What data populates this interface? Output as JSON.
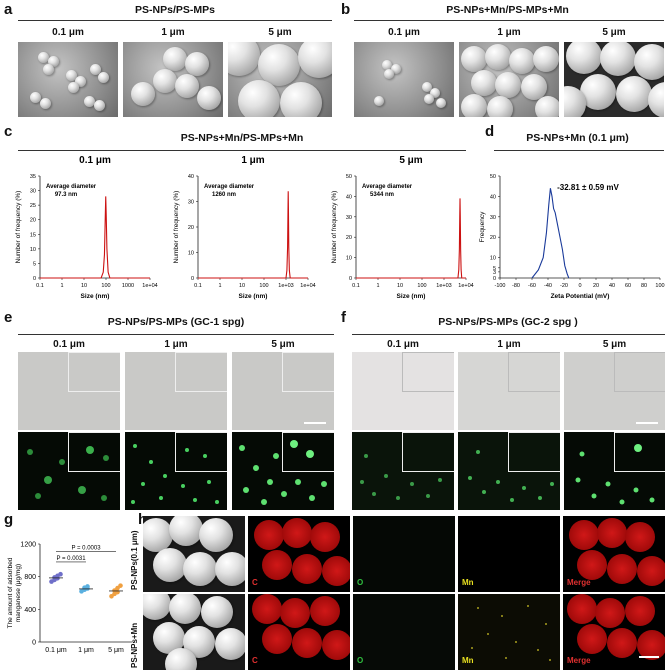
{
  "panels": {
    "a": {
      "label": "a",
      "title": "PS-NPs/PS-MPs",
      "cols": [
        "0.1 μm",
        "1 μm",
        "5 μm"
      ]
    },
    "b": {
      "label": "b",
      "title": "PS-NPs+Mn/PS-MPs+Mn",
      "cols": [
        "0.1 μm",
        "1 μm",
        "5 μm"
      ]
    },
    "c": {
      "label": "c",
      "title": "PS-NPs+Mn/PS-MPs+Mn",
      "cols": [
        "0.1 μm",
        "1 μm",
        "5 μm"
      ]
    },
    "d": {
      "label": "d",
      "title": "PS-NPs+Mn (0.1 μm)"
    },
    "e": {
      "label": "e",
      "title": "PS-NPs/PS-MPs (GC-1 spg)",
      "cols": [
        "0.1 μm",
        "1 μm",
        "5 μm"
      ]
    },
    "f": {
      "label": "f",
      "title": "PS-NPs/PS-MPs (GC-2 spg )",
      "cols": [
        "0.1 μm",
        "1 μm",
        "5 μm"
      ]
    },
    "g": {
      "label": "g"
    },
    "h": {
      "label": "h",
      "rows": [
        "PS-NPs(0.1 μm)",
        "PS-NPs+Mn"
      ],
      "elements": [
        "C",
        "O",
        "Mn",
        "Merge"
      ]
    }
  },
  "chart_data": [
    {
      "id": "c1",
      "type": "line",
      "title": "0.1 μm",
      "annotation": "Average diameter",
      "annotation_value": "97.3 nm",
      "xlabel": "Size (nm)",
      "ylabel": "Number of frequency (%)",
      "xscale": "log",
      "xticks": [
        "0.1",
        "1",
        "10",
        "100",
        "1000",
        "1e+04"
      ],
      "ylim": [
        0,
        35
      ],
      "yticks": [
        0,
        5,
        10,
        15,
        20,
        25,
        30,
        35
      ],
      "series": [
        {
          "x": [
            60,
            75,
            85,
            92,
            97.3,
            102,
            110,
            125,
            150
          ],
          "y": [
            0,
            2,
            8,
            20,
            28,
            22,
            10,
            2,
            0
          ]
        }
      ],
      "color": "#cc1111"
    },
    {
      "id": "c2",
      "type": "line",
      "title": "1 μm",
      "annotation": "Average diameter",
      "annotation_value": "1260 nm",
      "xlabel": "Size (nm)",
      "ylabel": "Number of frequency (%)",
      "xscale": "log",
      "xticks": [
        "0.1",
        "1",
        "10",
        "100",
        "1e+03",
        "1e+04"
      ],
      "ylim": [
        0,
        40
      ],
      "yticks": [
        0,
        10,
        20,
        30,
        40
      ],
      "series": [
        {
          "x": [
            1000,
            1100,
            1180,
            1230,
            1260,
            1290,
            1340,
            1420,
            1550
          ],
          "y": [
            0,
            3,
            12,
            26,
            34,
            27,
            12,
            3,
            0
          ]
        }
      ],
      "color": "#cc1111"
    },
    {
      "id": "c3",
      "type": "line",
      "title": "5 μm",
      "annotation": "Average diameter",
      "annotation_value": "5344 nm",
      "xlabel": "Size (nm)",
      "ylabel": "Number of frequency (%)",
      "xscale": "log",
      "xticks": [
        "0.1",
        "1",
        "10",
        "100",
        "1e+03",
        "1e+04"
      ],
      "ylim": [
        0,
        50
      ],
      "yticks": [
        0,
        10,
        20,
        30,
        40,
        50
      ],
      "series": [
        {
          "x": [
            4300,
            4700,
            5000,
            5200,
            5344,
            5480,
            5700,
            6000,
            6400
          ],
          "y": [
            0,
            4,
            14,
            30,
            39,
            31,
            14,
            4,
            0
          ]
        }
      ],
      "color": "#cc1111"
    },
    {
      "id": "d1",
      "type": "line",
      "title": "PS-NPs+Mn (0.1 μm)",
      "annotation": "-32.81 ± 0.59 mV",
      "xlabel": "Zeta Potential (mV)",
      "ylabel": "Frequency",
      "xlim": [
        -100,
        100
      ],
      "xticks": [
        -100,
        -80,
        -60,
        -40,
        -20,
        0,
        20,
        40,
        60,
        80,
        100
      ],
      "ylim": [
        0,
        50
      ],
      "yticks": [
        0,
        3,
        5,
        10,
        20,
        30,
        40,
        50
      ],
      "series": [
        {
          "x": [
            -60,
            -52,
            -46,
            -42,
            -39,
            -37,
            -35,
            -33,
            -31,
            -28,
            -25,
            -22,
            -19,
            -16,
            -14
          ],
          "y": [
            0,
            4,
            10,
            22,
            36,
            44,
            40,
            34,
            32,
            26,
            20,
            14,
            6,
            2,
            0
          ]
        }
      ],
      "color": "#1a3a9a"
    },
    {
      "id": "g1",
      "type": "scatter",
      "ylabel": "The amount of adsorbed manganese (μg/mg)",
      "categories": [
        "0.1 μm",
        "1 μm",
        "5 μm"
      ],
      "ylim": [
        0,
        1200
      ],
      "yticks": [
        0,
        400,
        800,
        1200
      ],
      "series": [
        {
          "category": "0.1 μm",
          "mean": 785,
          "points": [
            740,
            760,
            780,
            790,
            810,
            830
          ],
          "color": "#6f6fc9"
        },
        {
          "category": "1 μm",
          "mean": 650,
          "points": [
            620,
            640,
            655,
            665,
            680
          ],
          "color": "#5ab0e0"
        },
        {
          "category": "5 μm",
          "mean": 625,
          "points": [
            560,
            590,
            610,
            630,
            660,
            690
          ],
          "color": "#f0a040"
        }
      ],
      "comparisons": [
        {
          "from": "0.1 μm",
          "to": "1 μm",
          "label": "P = 0.0031"
        },
        {
          "from": "0.1 μm",
          "to": "5 μm",
          "label": "P = 0.0003"
        }
      ]
    }
  ]
}
